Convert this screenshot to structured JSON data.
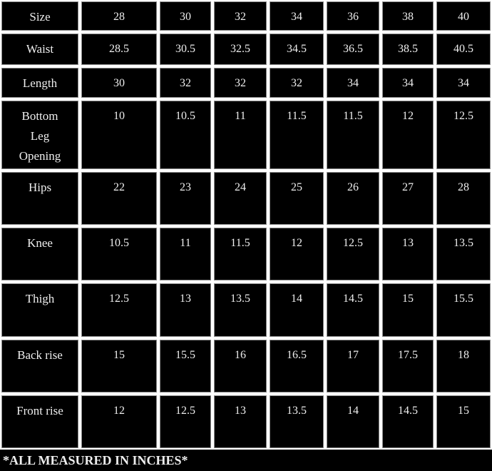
{
  "table": {
    "rows": [
      {
        "label": "Size",
        "values": [
          "28",
          "30",
          "32",
          "34",
          "36",
          "38",
          "40"
        ]
      },
      {
        "label": "Waist",
        "values": [
          "28.5",
          "30.5",
          "32.5",
          "34.5",
          "36.5",
          "38.5",
          "40.5"
        ]
      },
      {
        "label": "Length",
        "values": [
          "30",
          "32",
          "32",
          "32",
          "34",
          "34",
          "34"
        ]
      },
      {
        "label": "Bottom Leg Opening",
        "values": [
          "10",
          "10.5",
          "11",
          "11.5",
          "11.5",
          "12",
          "12.5"
        ]
      },
      {
        "label": "Hips",
        "values": [
          "22",
          "23",
          "24",
          "25",
          "26",
          "27",
          "28"
        ]
      },
      {
        "label": "Knee",
        "values": [
          "10.5",
          "11",
          "11.5",
          "12",
          "12.5",
          "13",
          "13.5"
        ]
      },
      {
        "label": "Thigh",
        "values": [
          "12.5",
          "13",
          "13.5",
          "14",
          "14.5",
          "15",
          "15.5"
        ]
      },
      {
        "label": "Back rise",
        "values": [
          "15",
          "15.5",
          "16",
          "16.5",
          "17",
          "17.5",
          "18"
        ]
      },
      {
        "label": "Front rise",
        "values": [
          "12",
          "12.5",
          "13",
          "13.5",
          "14",
          "14.5",
          "15"
        ]
      }
    ]
  },
  "footer": "*ALL MEASURED IN INCHES*",
  "colors": {
    "background": "#000000",
    "grid": "#ffffff",
    "text": "#eeeeee"
  }
}
